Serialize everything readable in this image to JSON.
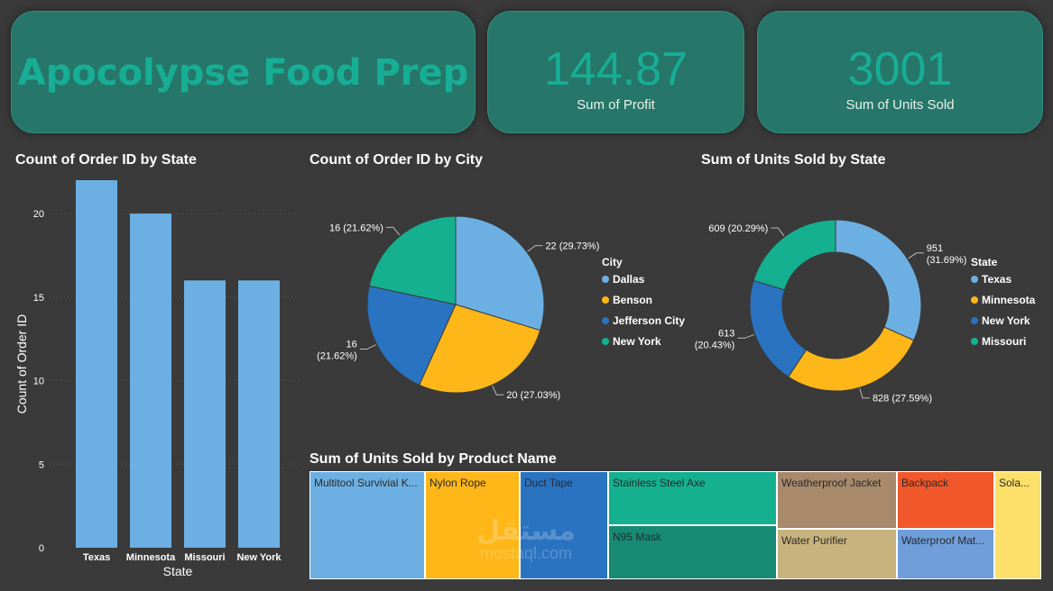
{
  "header": {
    "title": "Apocolypse Food Prep",
    "kpis": [
      {
        "value": "144.87",
        "label": "Sum of Profit"
      },
      {
        "value": "3001",
        "label": "Sum of Units Sold"
      }
    ]
  },
  "colors": {
    "texas": "#6cb0e3",
    "minnesota": "#fdb719",
    "jefferson": "#2a73c1",
    "missouri": "#14b08f",
    "card_bg": "#26776a",
    "accent": "#17ae95"
  },
  "chart_data": [
    {
      "type": "bar",
      "title": "Count of Order ID by State",
      "xlabel": "State",
      "ylabel": "Count of Order ID",
      "categories": [
        "Texas",
        "Minnesota",
        "Missouri",
        "New York"
      ],
      "values": [
        22,
        20,
        16,
        16
      ],
      "ylim": [
        0,
        22
      ],
      "yticks": [
        0,
        5,
        10,
        15,
        20
      ],
      "grid": true
    },
    {
      "type": "pie",
      "title": "Count of Order ID by City",
      "legend_title": "City",
      "legend_position": "right",
      "slices": [
        {
          "label": "Dallas",
          "value": 22,
          "data_label": "22 (29.73%)",
          "color": "#6cb0e3"
        },
        {
          "label": "Benson",
          "value": 20,
          "data_label": "20 (27.03%)",
          "color": "#fdb719"
        },
        {
          "label": "Jefferson City",
          "value": 16,
          "data_label": "16 (21.62%)",
          "color": "#2a73c1"
        },
        {
          "label": "New York",
          "value": 16,
          "data_label": "16 (21.62%)",
          "color": "#14b08f"
        }
      ]
    },
    {
      "type": "pie",
      "variant": "donut",
      "title": "Sum of Units Sold by State",
      "legend_title": "State",
      "legend_position": "right",
      "slices": [
        {
          "label": "Texas",
          "value": 951,
          "data_label": "951 (31.69%)",
          "color": "#6cb0e3"
        },
        {
          "label": "Minnesota",
          "value": 828,
          "data_label": "828 (27.59%)",
          "color": "#fdb719"
        },
        {
          "label": "New York",
          "value": 613,
          "data_label": "613 (20.43%)",
          "color": "#2a73c1"
        },
        {
          "label": "Missouri",
          "value": 609,
          "data_label": "609 (20.29%)",
          "color": "#14b08f"
        }
      ]
    },
    {
      "type": "treemap",
      "title": "Sum of Units Sold by Product Name",
      "items": [
        {
          "label": "Multitool Survivial K...",
          "color": "#6cb0e3"
        },
        {
          "label": "Nylon Rope",
          "color": "#fdb719"
        },
        {
          "label": "Duct Tape",
          "color": "#2a73c1"
        },
        {
          "label": "Stainless Steel Axe",
          "color": "#14b08f"
        },
        {
          "label": "N95 Mask",
          "color": "#178a74"
        },
        {
          "label": "Weatherproof Jacket",
          "color": "#a8896c"
        },
        {
          "label": "Water Purifier",
          "color": "#c8b27e"
        },
        {
          "label": "Backpack",
          "color": "#f0572a"
        },
        {
          "label": "Waterproof Mat...",
          "color": "#6f9edb"
        },
        {
          "label": "Sola...",
          "color": "#fde06a"
        }
      ]
    }
  ],
  "watermark": {
    "arabic": "مستقل",
    "latin": "mostaql.com"
  }
}
